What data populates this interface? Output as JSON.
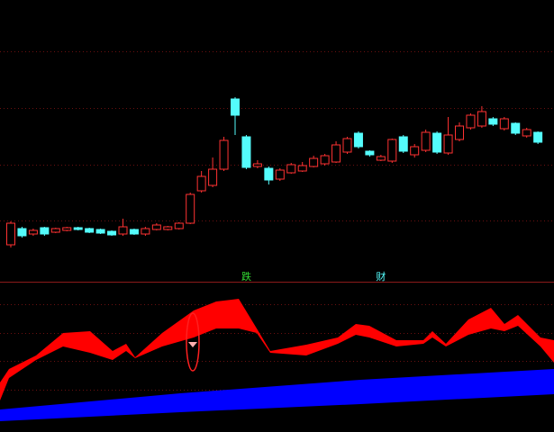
{
  "chart_data": [
    {
      "type": "candlestick",
      "ylim": [
        0,
        312
      ],
      "yticks": [
        67,
        129,
        192,
        255
      ],
      "grid": true,
      "up_color": "#ff3232",
      "down_color": "#54fcfc",
      "open": [
        40,
        58,
        52,
        59,
        54,
        56,
        59,
        58,
        57,
        55,
        52,
        57,
        52,
        57,
        57,
        58,
        64,
        100,
        106,
        124,
        202,
        160,
        127,
        125,
        113,
        120,
        122,
        127,
        130,
        132,
        143,
        164,
        144,
        134,
        133,
        160,
        140,
        145,
        164,
        142,
        157,
        170,
        172,
        180,
        169,
        175,
        161,
        165
      ],
      "close": [
        64,
        50,
        56,
        52,
        58,
        59,
        57,
        54,
        53,
        51,
        60,
        52,
        58,
        62,
        60,
        64,
        96,
        116,
        124,
        156,
        184,
        126,
        130,
        112,
        123,
        129,
        128,
        136,
        139,
        151,
        158,
        149,
        140,
        138,
        157,
        144,
        149,
        165,
        143,
        162,
        172,
        184,
        188,
        174,
        180,
        164,
        168,
        154
      ],
      "high": [
        66,
        60,
        58,
        60,
        59,
        60,
        60,
        59,
        58,
        56,
        69,
        58,
        60,
        64,
        61,
        65,
        98,
        122,
        137,
        160,
        204,
        162,
        134,
        127,
        125,
        131,
        132,
        139,
        141,
        155,
        160,
        166,
        145,
        140,
        158,
        162,
        152,
        168,
        166,
        182,
        176,
        186,
        194,
        182,
        182,
        176,
        170,
        166
      ],
      "low": [
        37,
        48,
        50,
        50,
        53,
        55,
        56,
        53,
        52,
        50,
        50,
        51,
        50,
        56,
        56,
        57,
        63,
        98,
        104,
        122,
        162,
        124,
        125,
        107,
        111,
        119,
        121,
        126,
        128,
        131,
        141,
        147,
        138,
        133,
        131,
        142,
        137,
        143,
        141,
        140,
        155,
        168,
        170,
        172,
        167,
        162,
        159,
        152
      ],
      "annotations": [
        {
          "text": "跌",
          "at": 21,
          "color": "#33dd33"
        },
        {
          "text": "财",
          "at": 33,
          "color": "#54fcfc"
        }
      ]
    },
    {
      "type": "band",
      "xlim": [
        0,
        615
      ],
      "ylim": [
        0,
        167
      ],
      "yticks": [
        47,
        79,
        110,
        142
      ],
      "grid": true,
      "bands": [
        {
          "color": "#ff0000",
          "x": [
            0,
            10,
            40,
            70,
            100,
            125,
            140,
            150,
            180,
            215,
            240,
            265,
            285,
            300,
            340,
            375,
            395,
            410,
            440,
            470,
            480,
            495,
            520,
            545,
            560,
            575,
            600,
            615
          ],
          "upper": [
            55,
            70,
            85,
            110,
            112,
            90,
            98,
            83,
            110,
            135,
            145,
            148,
            115,
            90,
            97,
            105,
            120,
            118,
            102,
            102,
            112,
            98,
            125,
            138,
            120,
            130,
            105,
            102
          ],
          "lower": [
            35,
            60,
            80,
            95,
            88,
            80,
            90,
            82,
            95,
            105,
            115,
            115,
            110,
            88,
            85,
            98,
            108,
            105,
            95,
            98,
            105,
            95,
            108,
            115,
            112,
            118,
            95,
            77
          ]
        },
        {
          "color": "#0000ff",
          "x": [
            0,
            200,
            400,
            615
          ],
          "upper": [
            25,
            43,
            58,
            70
          ],
          "lower": [
            12,
            22,
            31,
            42
          ]
        }
      ]
    }
  ]
}
